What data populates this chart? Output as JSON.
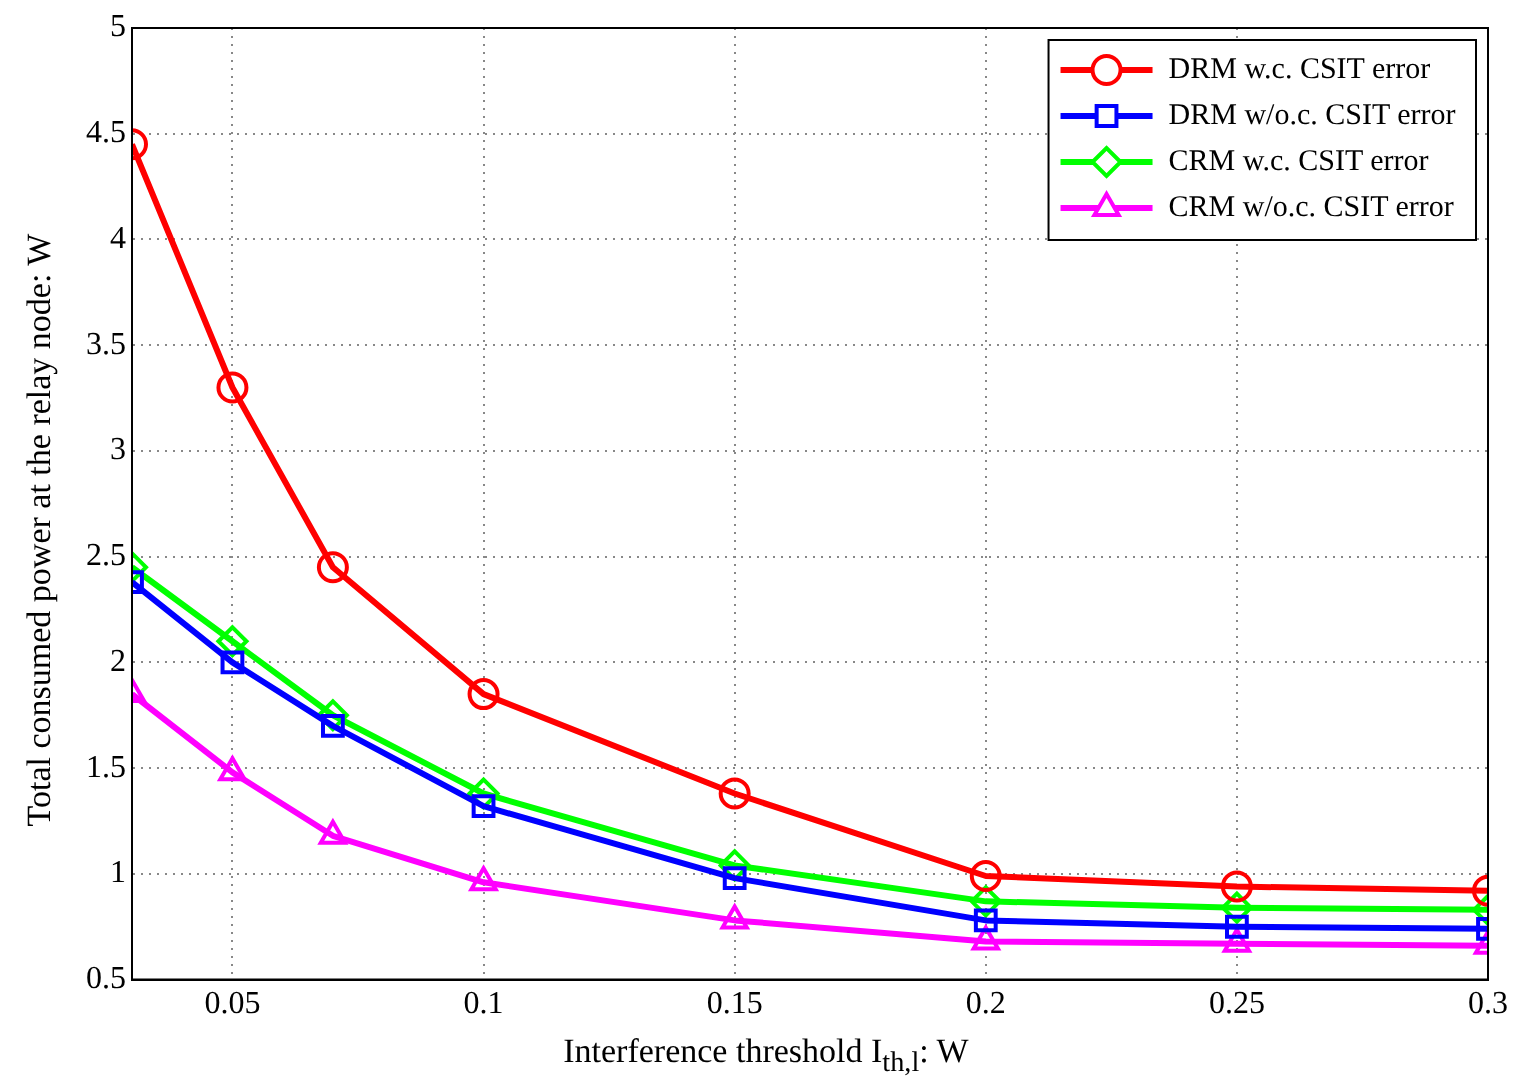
{
  "chart_data": {
    "type": "line",
    "xlabel": "Interference threshold I$_{th,l}$: W",
    "ylabel": "Total consumed power at the relay node: W",
    "x": [
      0.03,
      0.05,
      0.07,
      0.1,
      0.15,
      0.2,
      0.25,
      0.3
    ],
    "xlim": [
      0.03,
      0.3
    ],
    "xticks": [
      0.05,
      0.1,
      0.15,
      0.2,
      0.25,
      0.3
    ],
    "ylim": [
      0.5,
      5
    ],
    "yticks": [
      0.5,
      1,
      1.5,
      2,
      2.5,
      3,
      3.5,
      4,
      4.5,
      5
    ],
    "grid": true,
    "legend": "top right",
    "line_style": "solid",
    "series": [
      {
        "name": "DRM w.c. CSIT error",
        "color": "#ff0000",
        "marker": "circle",
        "values": [
          4.45,
          3.3,
          2.45,
          1.85,
          1.38,
          0.99,
          0.94,
          0.92
        ]
      },
      {
        "name": "DRM w/o.c. CSIT error",
        "color": "#0000ff",
        "marker": "square",
        "values": [
          2.38,
          2.0,
          1.7,
          1.32,
          0.98,
          0.78,
          0.75,
          0.74
        ]
      },
      {
        "name": "CRM w.c. CSIT error",
        "color": "#00ff00",
        "marker": "diamond",
        "values": [
          2.45,
          2.1,
          1.75,
          1.38,
          1.04,
          0.87,
          0.84,
          0.83
        ]
      },
      {
        "name": "CRM w/o.c. CSIT error",
        "color": "#ff00ff",
        "marker": "triangle",
        "values": [
          1.85,
          1.48,
          1.18,
          0.96,
          0.78,
          0.68,
          0.67,
          0.66
        ]
      }
    ]
  }
}
